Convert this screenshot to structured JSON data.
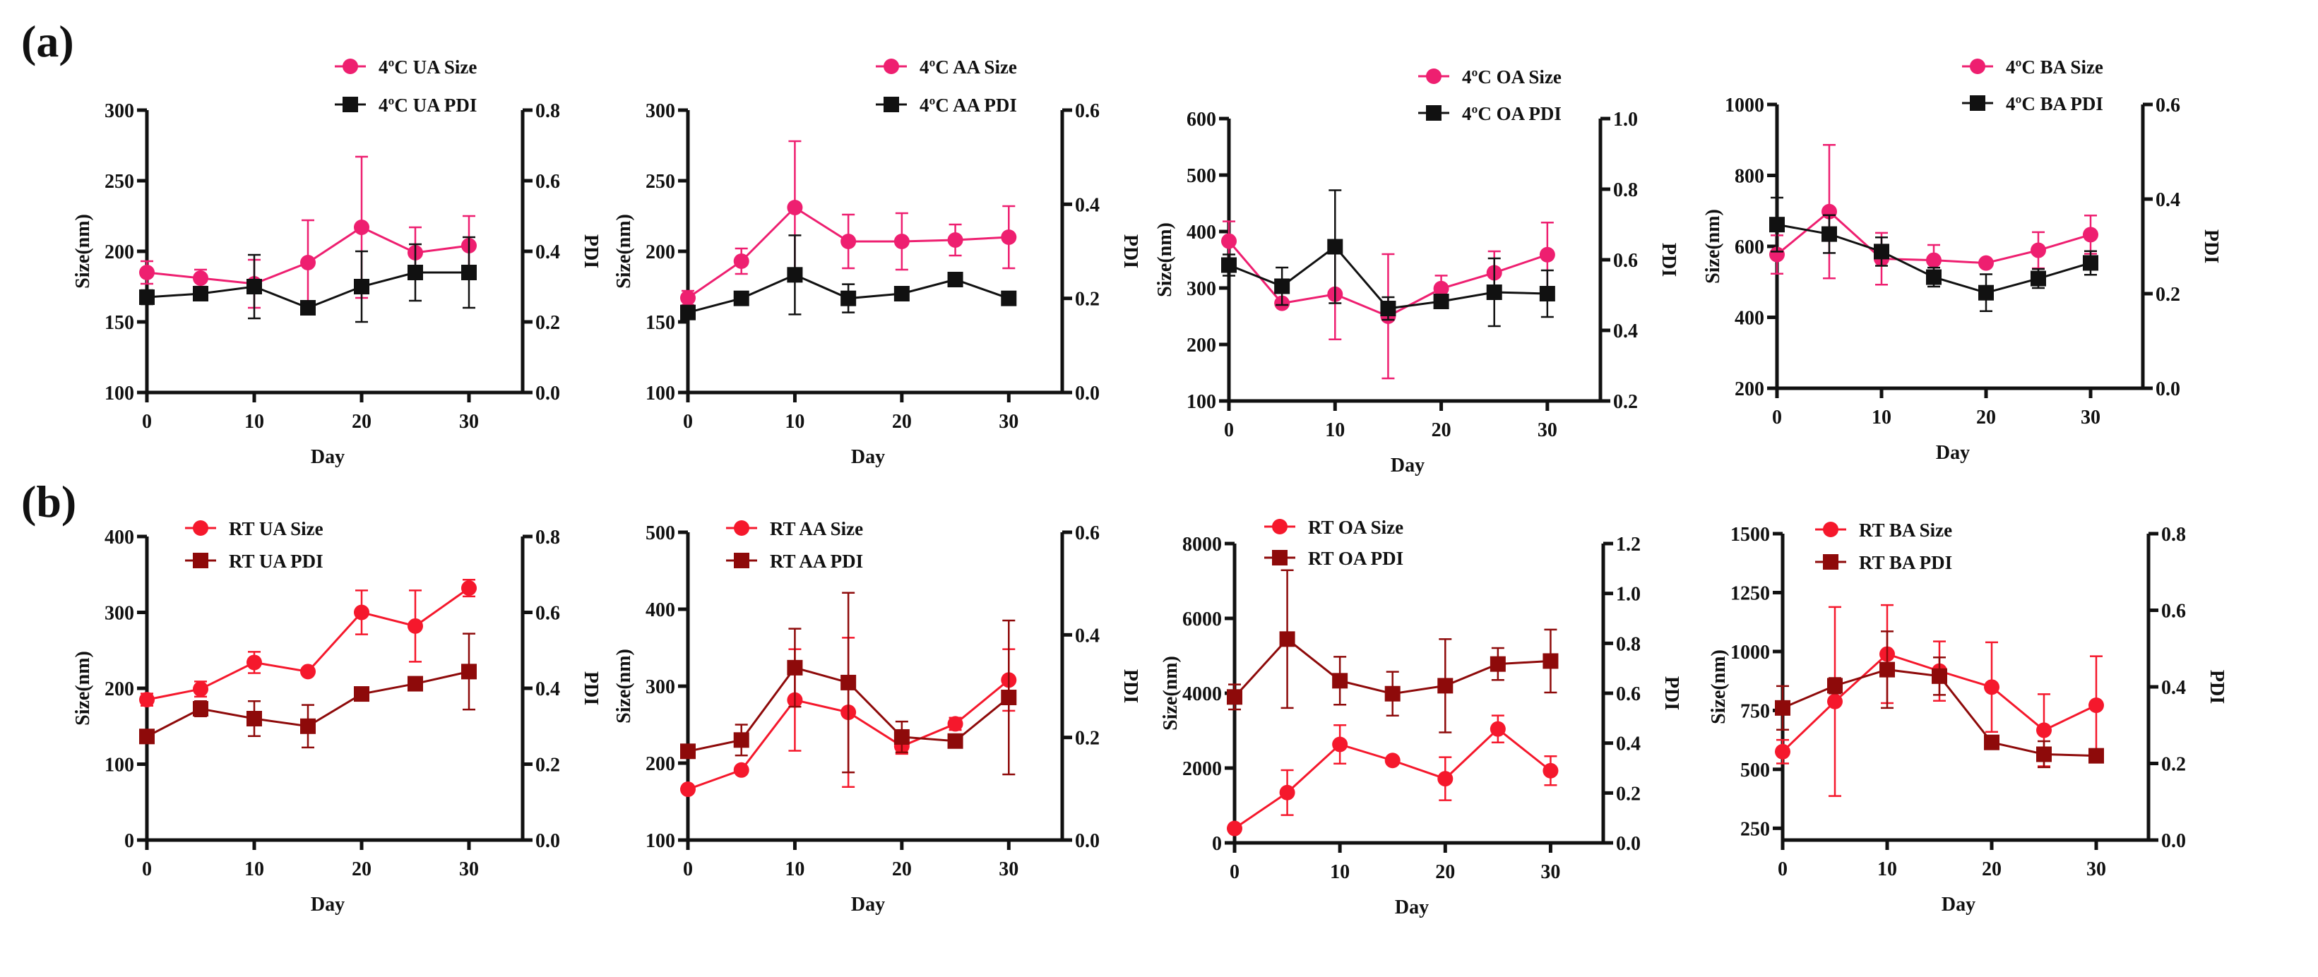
{
  "figure": {
    "panel_labels": [
      "(a)",
      "(b)"
    ]
  },
  "colors": {
    "cold_size": "#ee1f70",
    "cold_pdi": "#111111",
    "rt_size": "#f5182c",
    "rt_pdi": "#8e0a0a",
    "axis": "#111111"
  },
  "chart_data": [
    {
      "id": "a1",
      "type": "line",
      "row": "(a)",
      "x": [
        0,
        5,
        10,
        15,
        20,
        25,
        30
      ],
      "xlim": [
        0,
        35
      ],
      "xticks": [
        0,
        10,
        20,
        30
      ],
      "xlabel": "Day",
      "ylabel": "Size(nm)",
      "y2label": "PDI",
      "ylim": [
        100,
        300
      ],
      "yticks": [
        100,
        150,
        200,
        250,
        300
      ],
      "ytick_labels": [
        "100",
        "150",
        "200",
        "250",
        "300"
      ],
      "y2lim": [
        0,
        0.8
      ],
      "y2ticks": [
        0,
        0.2,
        0.4,
        0.6,
        0.8
      ],
      "y2tick_labels": [
        "0.0",
        "0.2",
        "0.4",
        "0.6",
        "0.8"
      ],
      "legend_position": "top-right",
      "series": [
        {
          "name": "4ºC UA Size",
          "axis": "left",
          "color_key": "cold_size",
          "marker": "circle",
          "y": [
            185,
            181,
            177,
            192,
            217,
            199,
            204
          ],
          "err": [
            8,
            6,
            17,
            30,
            50,
            18,
            21
          ]
        },
        {
          "name": "4ºC UA PDI",
          "axis": "right",
          "color_key": "cold_pdi",
          "marker": "square",
          "y": [
            0.27,
            0.28,
            0.3,
            0.24,
            0.3,
            0.34,
            0.34
          ],
          "err": [
            0.02,
            0.01,
            0.09,
            0.01,
            0.1,
            0.08,
            0.1
          ]
        }
      ]
    },
    {
      "id": "a2",
      "type": "line",
      "row": "(a)",
      "x": [
        0,
        5,
        10,
        15,
        20,
        25,
        30
      ],
      "xlim": [
        0,
        35
      ],
      "xticks": [
        0,
        10,
        20,
        30
      ],
      "xlabel": "Day",
      "ylabel": "Size(nm)",
      "y2label": "PDI",
      "ylim": [
        100,
        300
      ],
      "yticks": [
        100,
        150,
        200,
        250,
        300
      ],
      "ytick_labels": [
        "100",
        "150",
        "200",
        "250",
        "300"
      ],
      "y2lim": [
        0,
        0.6
      ],
      "y2ticks": [
        0,
        0.2,
        0.4,
        0.6
      ],
      "y2tick_labels": [
        "0.0",
        "0.2",
        "0.4",
        "0.6"
      ],
      "legend_position": "top-right",
      "series": [
        {
          "name": "4ºC  AA Size",
          "axis": "left",
          "color_key": "cold_size",
          "marker": "circle",
          "y": [
            167,
            193,
            231,
            207,
            207,
            208,
            210
          ],
          "err": [
            5,
            9,
            47,
            19,
            20,
            11,
            22
          ]
        },
        {
          "name": "4ºC  AA PDI",
          "axis": "right",
          "color_key": "cold_pdi",
          "marker": "square",
          "y": [
            0.17,
            0.2,
            0.25,
            0.2,
            0.21,
            0.24,
            0.2
          ],
          "err": [
            0.01,
            0.01,
            0.084,
            0.03,
            0.01,
            0.01,
            0.01
          ]
        }
      ]
    },
    {
      "id": "a3",
      "type": "line",
      "row": "(a)",
      "x": [
        0,
        5,
        10,
        15,
        20,
        25,
        30
      ],
      "xlim": [
        0,
        35
      ],
      "xticks": [
        0,
        10,
        20,
        30
      ],
      "xlabel": "Day",
      "ylabel": "Size(nm)",
      "y2label": "PDI",
      "ylim": [
        100,
        600
      ],
      "yticks": [
        100,
        200,
        300,
        400,
        500,
        600
      ],
      "ytick_labels": [
        "100",
        "200",
        "300",
        "400",
        "500",
        "600"
      ],
      "y2lim": [
        0.2,
        1.0
      ],
      "y2ticks": [
        0.2,
        0.4,
        0.6,
        0.8,
        1.0
      ],
      "y2tick_labels": [
        "0.2",
        "0.4",
        "0.6",
        "0.8",
        "1.0"
      ],
      "legend_position": "top-right",
      "series": [
        {
          "name": "4ºC  OA Size",
          "axis": "left",
          "color_key": "cold_size",
          "marker": "circle",
          "y": [
            383,
            273,
            289,
            250,
            299,
            327,
            359
          ],
          "err": [
            35,
            5,
            80,
            110,
            23,
            38,
            57
          ]
        },
        {
          "name": "4ºC  OA PDI",
          "axis": "right",
          "color_key": "cold_pdi",
          "marker": "square",
          "y": [
            0.585,
            0.525,
            0.637,
            0.462,
            0.482,
            0.508,
            0.504
          ],
          "err": [
            0.03,
            0.053,
            0.16,
            0.032,
            0.01,
            0.096,
            0.066
          ]
        }
      ]
    },
    {
      "id": "a4",
      "type": "line",
      "row": "(a)",
      "x": [
        0,
        5,
        10,
        15,
        20,
        25,
        30
      ],
      "xlim": [
        0,
        35
      ],
      "xticks": [
        0,
        10,
        20,
        30
      ],
      "xlabel": "Day",
      "ylabel": "Size(nm)",
      "y2label": "PDI",
      "ylim": [
        200,
        1000
      ],
      "yticks": [
        200,
        400,
        600,
        800,
        1000
      ],
      "ytick_labels": [
        "200",
        "400",
        "600",
        "800",
        "1000"
      ],
      "y2lim": [
        0,
        0.6
      ],
      "y2ticks": [
        0,
        0.2,
        0.4,
        0.6
      ],
      "y2tick_labels": [
        "0.0",
        "0.2",
        "0.4",
        "0.6"
      ],
      "legend_position": "top-right",
      "series": [
        {
          "name": "4ºC  BA Size",
          "axis": "left",
          "color_key": "cold_size",
          "marker": "circle",
          "y": [
            577,
            698,
            565,
            561,
            553,
            589,
            633
          ],
          "err": [
            54,
            188,
            73,
            43,
            8,
            51,
            54
          ]
        },
        {
          "name": "4ºC  BA PDI",
          "axis": "right",
          "color_key": "cold_pdi",
          "marker": "square",
          "y": [
            0.346,
            0.326,
            0.289,
            0.235,
            0.202,
            0.232,
            0.265
          ],
          "err": [
            0.057,
            0.04,
            0.03,
            0.02,
            0.039,
            0.02,
            0.025
          ]
        }
      ]
    },
    {
      "id": "b1",
      "type": "line",
      "row": "(b)",
      "x": [
        0,
        5,
        10,
        15,
        20,
        25,
        30
      ],
      "xlim": [
        0,
        35
      ],
      "xticks": [
        0,
        10,
        20,
        30
      ],
      "xlabel": "Day",
      "ylabel": "Size(nm)",
      "y2label": "PDI",
      "ylim": [
        0,
        400
      ],
      "yticks": [
        0,
        100,
        200,
        300,
        400
      ],
      "ytick_labels": [
        "0",
        "100",
        "200",
        "300",
        "400"
      ],
      "y2lim": [
        0,
        0.8
      ],
      "y2ticks": [
        0,
        0.2,
        0.4,
        0.6,
        0.8
      ],
      "y2tick_labels": [
        "0.0",
        "0.2",
        "0.4",
        "0.6",
        "0.8"
      ],
      "legend_position": "top-left",
      "series": [
        {
          "name": "RT  UA Size",
          "axis": "left",
          "color_key": "rt_size",
          "marker": "circle",
          "y": [
            185,
            199,
            234,
            222,
            300,
            282,
            332
          ],
          "err": [
            8,
            10,
            14,
            3,
            29,
            47,
            11
          ]
        },
        {
          "name": "RT  UA PDI",
          "axis": "right",
          "color_key": "rt_pdi",
          "marker": "square",
          "y": [
            0.273,
            0.346,
            0.32,
            0.3,
            0.385,
            0.412,
            0.444
          ],
          "err": [
            0.01,
            0.02,
            0.046,
            0.056,
            0.01,
            0.01,
            0.1
          ]
        }
      ]
    },
    {
      "id": "b2",
      "type": "line",
      "row": "(b)",
      "x": [
        0,
        5,
        10,
        15,
        20,
        25,
        30
      ],
      "xlim": [
        0,
        35
      ],
      "xticks": [
        0,
        10,
        20,
        30
      ],
      "xlabel": "Day",
      "ylabel": "Size(nm)",
      "y2label": "PDI",
      "ylim": [
        100,
        500
      ],
      "yticks": [
        100,
        200,
        300,
        400,
        500
      ],
      "ytick_labels": [
        "100",
        "200",
        "300",
        "400",
        "500"
      ],
      "y2lim": [
        0,
        0.6
      ],
      "y2ticks": [
        0,
        0.2,
        0.4,
        0.6
      ],
      "y2tick_labels": [
        "0.0",
        "0.2",
        "0.4",
        "0.6"
      ],
      "legend_position": "top-left",
      "series": [
        {
          "name": "RT  AA Size",
          "axis": "left",
          "color_key": "rt_size",
          "marker": "circle",
          "y": [
            166,
            191,
            282,
            266,
            222,
            251,
            308
          ],
          "err": [
            3,
            3,
            66,
            97,
            10,
            8,
            40
          ]
        },
        {
          "name": "RT  AA PDI",
          "axis": "right",
          "color_key": "rt_pdi",
          "marker": "square",
          "y": [
            0.173,
            0.195,
            0.336,
            0.307,
            0.201,
            0.193,
            0.278
          ],
          "err": [
            0.01,
            0.03,
            0.076,
            0.175,
            0.03,
            0.01,
            0.15
          ]
        }
      ]
    },
    {
      "id": "b3",
      "type": "line",
      "row": "(b)",
      "x": [
        0,
        5,
        10,
        15,
        20,
        25,
        30
      ],
      "xlim": [
        0,
        35
      ],
      "xticks": [
        0,
        10,
        20,
        30
      ],
      "xlabel": "Day",
      "ylabel": "Size(nm)",
      "y2label": "PDI",
      "ylim": [
        0,
        8000
      ],
      "yticks": [
        0,
        2000,
        4000,
        6000,
        8000
      ],
      "ytick_labels": [
        "0",
        "2000",
        "4000",
        "6000",
        "8000"
      ],
      "y2lim": [
        0,
        1.2
      ],
      "y2ticks": [
        0,
        0.2,
        0.4,
        0.6,
        0.8,
        1.0,
        1.2
      ],
      "y2tick_labels": [
        "0.0",
        "0.2",
        "0.4",
        "0.6",
        "0.8",
        "1.0",
        "1.2"
      ],
      "legend_position": "top-left",
      "series": [
        {
          "name": "RT  OA Size",
          "axis": "left",
          "color_key": "rt_size",
          "marker": "circle",
          "y": [
            386,
            1344,
            2632,
            2203,
            1715,
            3044,
            1929
          ],
          "err": [
            30,
            600,
            515,
            60,
            575,
            360,
            386
          ]
        },
        {
          "name": "RT  OA PDI",
          "axis": "right",
          "color_key": "rt_pdi",
          "marker": "square",
          "y": [
            0.585,
            0.817,
            0.65,
            0.598,
            0.63,
            0.717,
            0.729
          ],
          "err": [
            0.05,
            0.276,
            0.096,
            0.088,
            0.187,
            0.064,
            0.126
          ]
        }
      ]
    },
    {
      "id": "b4",
      "type": "line",
      "row": "(b)",
      "x": [
        0,
        5,
        10,
        15,
        20,
        25,
        30
      ],
      "xlim": [
        0,
        35
      ],
      "xticks": [
        0,
        10,
        20,
        30
      ],
      "xlabel": "Day",
      "ylabel": "Size(nm)",
      "y2label": "PDI",
      "ylim": [
        200,
        1500
      ],
      "yticks": [
        250,
        500,
        750,
        1000,
        1250,
        1500
      ],
      "ytick_labels": [
        "250",
        "500",
        "750",
        "1000",
        "1250",
        "1500"
      ],
      "y2lim": [
        0,
        0.8
      ],
      "y2ticks": [
        0,
        0.2,
        0.4,
        0.6,
        0.8
      ],
      "y2tick_labels": [
        "0.0",
        "0.2",
        "0.4",
        "0.6",
        "0.8"
      ],
      "legend_position": "top-left",
      "series": [
        {
          "name": "RT  BA Size",
          "axis": "left",
          "color_key": "rt_size",
          "marker": "circle",
          "y": [
            575,
            788,
            989,
            917,
            849,
            666,
            772
          ],
          "err": [
            50,
            401,
            208,
            126,
            190,
            153,
            208
          ]
        },
        {
          "name": "RT  BA PDI",
          "axis": "right",
          "color_key": "rt_pdi",
          "marker": "square",
          "y": [
            0.345,
            0.403,
            0.445,
            0.428,
            0.255,
            0.224,
            0.22
          ],
          "err": [
            0.057,
            0.02,
            0.1,
            0.049,
            0.01,
            0.034,
            0.01
          ]
        }
      ]
    }
  ]
}
